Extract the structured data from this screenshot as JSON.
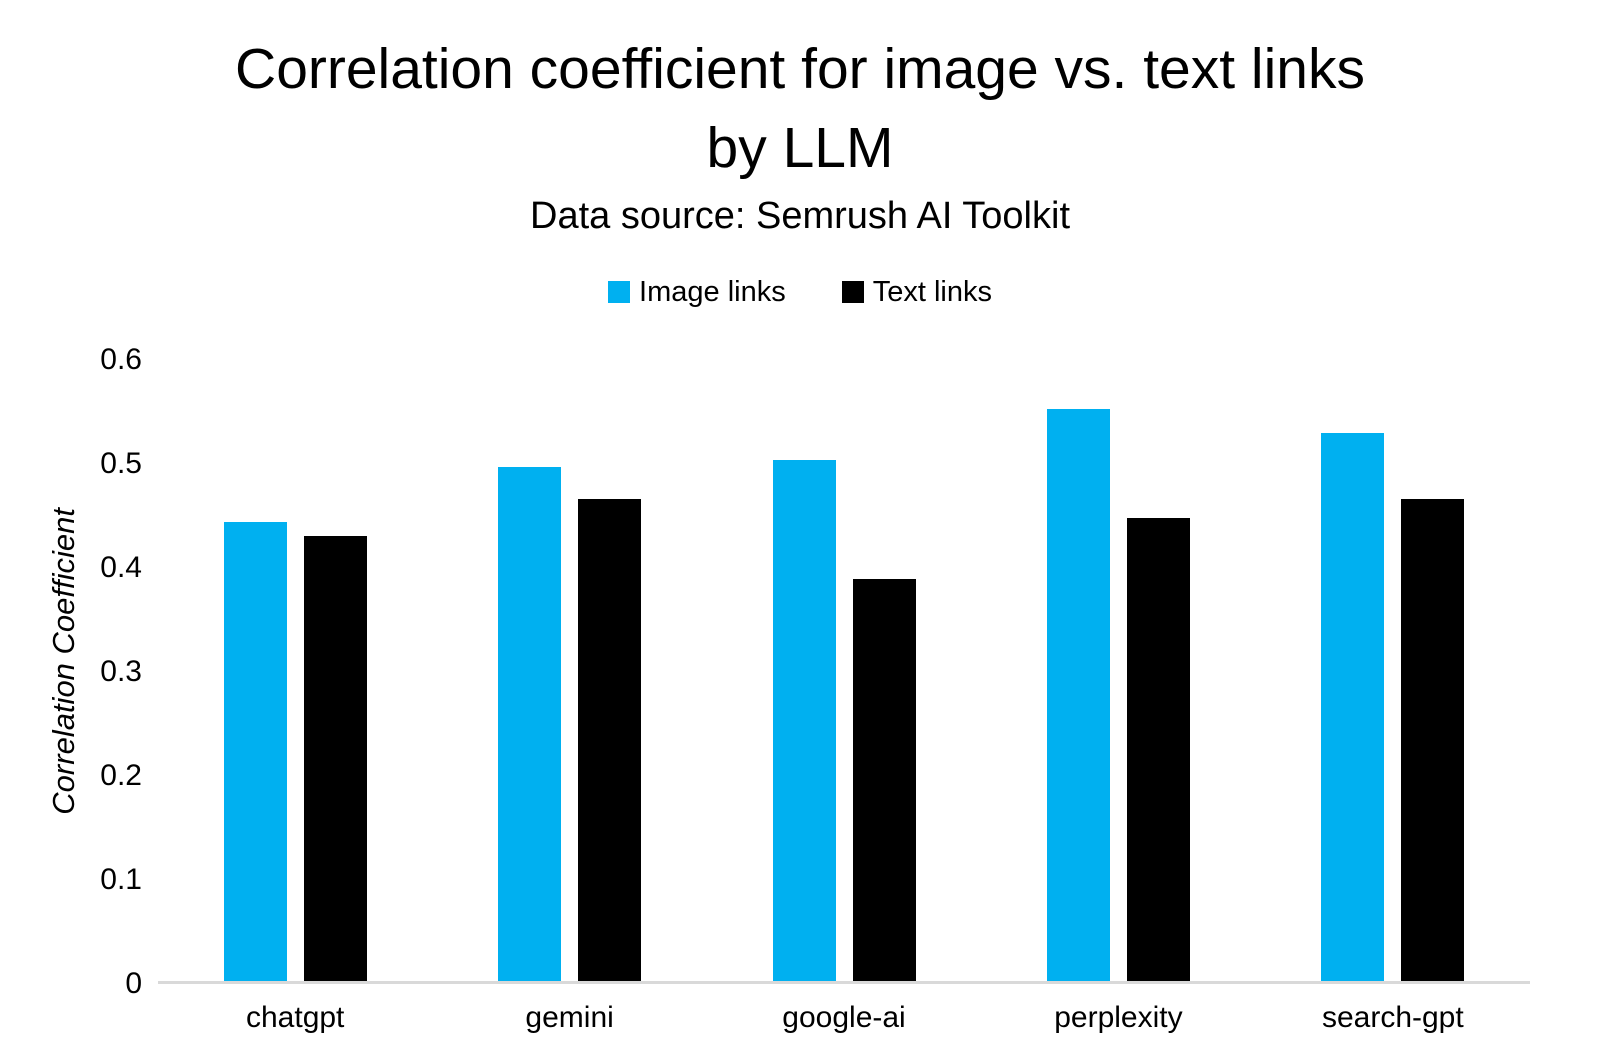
{
  "title": "Correlation coefficient for image vs. text links by LLM",
  "subtitle": "Data source: Semrush AI Toolkit",
  "colors": {
    "background": "#ffffff",
    "text": "#000000",
    "axis_line": "#d9d9d9",
    "image_links": "#00b0f0",
    "text_links": "#000000"
  },
  "chart_data": {
    "type": "bar",
    "title": "Correlation coefficient for image vs. text links by LLM",
    "subtitle": "Data source: Semrush AI Toolkit",
    "categories": [
      "chatgpt",
      "gemini",
      "google-ai",
      "perplexity",
      "search-gpt"
    ],
    "series": [
      {
        "name": "Image links",
        "color": "#00b0f0",
        "values": [
          0.441,
          0.494,
          0.501,
          0.55,
          0.527
        ]
      },
      {
        "name": "Text links",
        "color": "#000000",
        "values": [
          0.428,
          0.463,
          0.387,
          0.445,
          0.463
        ]
      }
    ],
    "xlabel": "",
    "ylabel": "Correlation Coefficient",
    "ylim": [
      0,
      0.62
    ],
    "yticks": [
      0,
      0.1,
      0.2,
      0.3,
      0.4,
      0.5,
      0.6
    ],
    "ytick_labels": [
      "0",
      "0.1",
      "0.2",
      "0.3",
      "0.4",
      "0.5",
      "0.6"
    ],
    "grid": false,
    "legend_position": "top-center"
  }
}
